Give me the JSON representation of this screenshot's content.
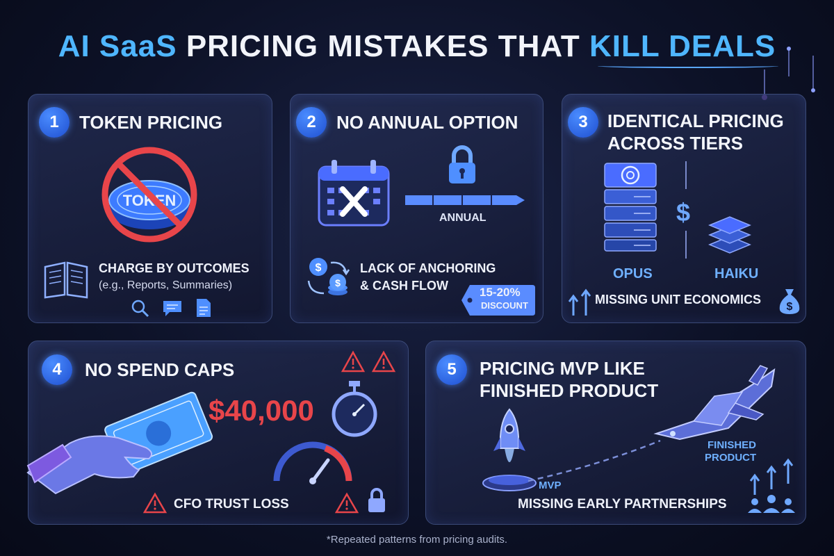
{
  "title": {
    "part1": "AI SaaS",
    "part2": "PRICING MISTAKES THAT",
    "part3": "KILL DEALS"
  },
  "cards": [
    {
      "number": "1",
      "heading": "TOKEN PRICING",
      "coin_label": "TOKEN",
      "line1": "CHARGE BY OUTCOMES",
      "line2": "(e.g., Reports, Summaries)",
      "icons": [
        "book-icon",
        "magnifier-icon",
        "chat-icon",
        "document-icon"
      ]
    },
    {
      "number": "2",
      "heading": "NO ANNUAL OPTION",
      "bar_label": "ANNUAL",
      "line1": "LACK OF ANCHORING",
      "line2": "& CASH FLOW",
      "tag_line1": "15-20%",
      "tag_line2": "DISCOUNT",
      "icons": [
        "calendar-x-icon",
        "lock-icon",
        "coins-cycle-icon",
        "price-tag-icon"
      ]
    },
    {
      "number": "3",
      "heading_line1": "IDENTICAL PRICING",
      "heading_line2": "ACROSS TIERS",
      "label_left": "OPUS",
      "label_right": "HAIKU",
      "dollar": "$",
      "footer": "MISSING UNIT ECONOMICS",
      "icons": [
        "server-stack-icon",
        "layer-stack-icon",
        "arrows-up-icon",
        "money-bag-icon"
      ]
    },
    {
      "number": "4",
      "heading": "NO SPEND CAPS",
      "amount": "$40,000",
      "footer": "CFO TRUST LOSS",
      "icons": [
        "hand-money-icon",
        "stopwatch-icon",
        "gauge-icon",
        "warning-icon",
        "lock-icon"
      ]
    },
    {
      "number": "5",
      "heading_line1": "PRICING MVP LIKE",
      "heading_line2": "FINISHED PRODUCT",
      "label_mvp": "MVP",
      "label_finished_line1": "FINISHED",
      "label_finished_line2": "PRODUCT",
      "footer": "MISSING EARLY PARTNERSHIPS",
      "icons": [
        "rocket-icon",
        "spaceship-icon",
        "growth-people-icon"
      ]
    }
  ],
  "footnote": "*Repeated patterns from pricing audits.",
  "colors": {
    "accent_blue": "#4fb6ff",
    "warning_red": "#e8454a",
    "card_border": "#3b4a78"
  }
}
